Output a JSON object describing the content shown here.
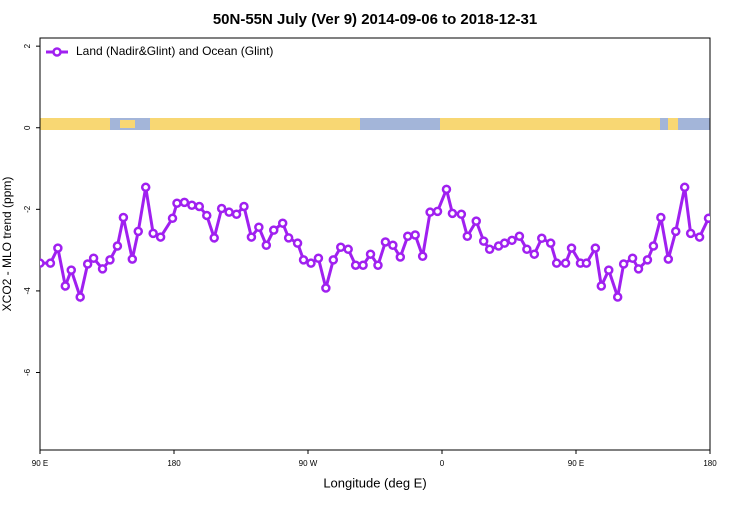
{
  "chart_data": {
    "type": "line",
    "title": "50N-55N July (Ver 9)   2014-09-06 to 2018-12-31",
    "x_label": "Longitude (deg E)",
    "y_label": "XCO2 - MLO trend (ppm)",
    "xlim": [
      90,
      540
    ],
    "xticks": [
      {
        "value": 90,
        "label": "90 E"
      },
      {
        "value": 180,
        "label": "180"
      },
      {
        "value": 270,
        "label": "90 W"
      },
      {
        "value": 360,
        "label": "0"
      },
      {
        "value": 450,
        "label": "90 E"
      },
      {
        "value": 540,
        "label": "180"
      }
    ],
    "ylim": [
      -7.9,
      2.2
    ],
    "yticks": [
      -6,
      -4,
      -2,
      0,
      2
    ],
    "legend": "top-left",
    "series": [
      {
        "name": "Land (Nadir&Glint) and Ocean (Glint)",
        "color": "#a020f0",
        "x": [
          90,
          97,
          102,
          107,
          111,
          117,
          122,
          126,
          132,
          137,
          142,
          146,
          152,
          156,
          161,
          166,
          171,
          179,
          182,
          187,
          192,
          197,
          202,
          207,
          212,
          217,
          222,
          227,
          232,
          237,
          242,
          247,
          253,
          257,
          263,
          267,
          272,
          277,
          282,
          287,
          292,
          297,
          302,
          307,
          312,
          317,
          322,
          327,
          332,
          337,
          342,
          347,
          352,
          357,
          363,
          367,
          373,
          377,
          383,
          388,
          392,
          398,
          402,
          407,
          412,
          417,
          422,
          427,
          433,
          437,
          443,
          447,
          453,
          457,
          463,
          467,
          472,
          478,
          482,
          488,
          492,
          498,
          502,
          507,
          512,
          517,
          523,
          527,
          533,
          539
        ],
        "values": [
          -3.32,
          -3.32,
          -2.95,
          -3.88,
          -3.49,
          -4.15,
          -3.34,
          -3.2,
          -3.46,
          -3.24,
          -2.9,
          -2.2,
          -3.22,
          -2.54,
          -1.46,
          -2.59,
          -2.68,
          -2.22,
          -1.85,
          -1.83,
          -1.9,
          -1.93,
          -2.15,
          -2.7,
          -1.98,
          -2.07,
          -2.12,
          -1.93,
          -2.68,
          -2.44,
          -2.88,
          -2.51,
          -2.34,
          -2.7,
          -2.83,
          -3.24,
          -3.32,
          -3.2,
          -3.93,
          -3.24,
          -2.93,
          -2.98,
          -3.37,
          -3.37,
          -3.1,
          -3.37,
          -2.8,
          -2.88,
          -3.17,
          -2.66,
          -2.63,
          -3.15,
          -2.07,
          -2.05,
          -1.51,
          -2.1,
          -2.12,
          -2.66,
          -2.29,
          -2.78,
          -2.98,
          -2.9,
          -2.83,
          -2.76,
          -2.66,
          -2.98,
          -3.1,
          -2.71,
          -2.83,
          -3.32,
          -3.32,
          -2.95,
          -3.32,
          -3.32,
          -2.95,
          -3.88,
          -3.49,
          -4.15,
          -3.34,
          -3.2,
          -3.46,
          -3.24,
          -2.9,
          -2.2,
          -3.22,
          -2.54,
          -1.46,
          -2.59,
          -2.68,
          -2.22
        ]
      }
    ]
  }
}
